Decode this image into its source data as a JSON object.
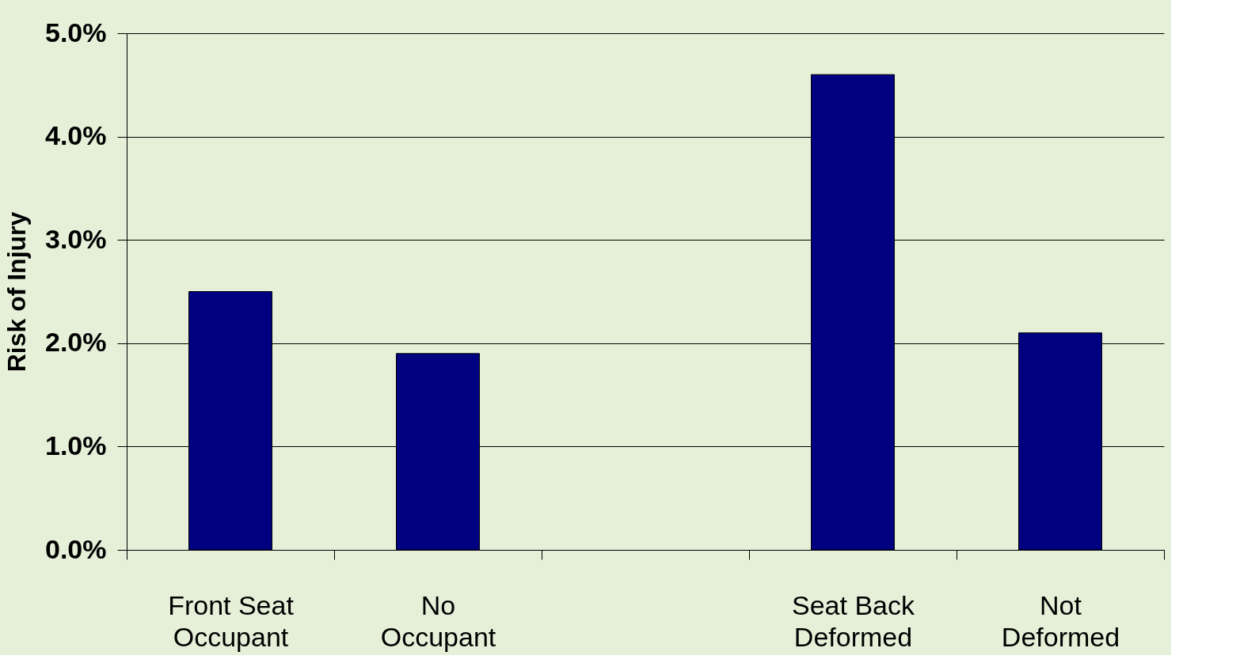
{
  "chart_data": {
    "type": "bar",
    "ylabel": "Risk of Injury",
    "categories": [
      "Front Seat\nOccupant",
      "No\nOccupant",
      null,
      "Seat Back\nDeformed",
      "Not\nDeformed"
    ],
    "values": [
      2.5,
      1.9,
      null,
      4.6,
      2.1
    ],
    "color": "#000080",
    "ylim": [
      0,
      5
    ],
    "yticks": [
      {
        "value": 0,
        "label": "0.0%"
      },
      {
        "value": 1,
        "label": "1.0%"
      },
      {
        "value": 2,
        "label": "2.0%"
      },
      {
        "value": 3,
        "label": "3.0%"
      },
      {
        "value": 4,
        "label": "4.0%"
      },
      {
        "value": 5,
        "label": "5.0%"
      }
    ],
    "grid": "y"
  }
}
